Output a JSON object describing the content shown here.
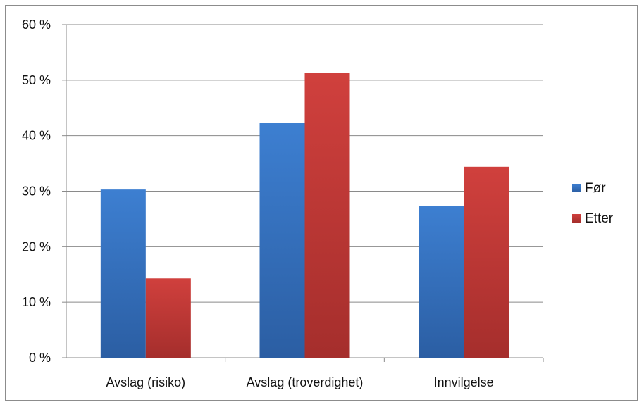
{
  "chart_data": {
    "type": "bar",
    "categories": [
      "Avslag (risiko)",
      "Avslag (troverdighet)",
      "Innvilgelse"
    ],
    "series": [
      {
        "name": "Før",
        "values": [
          30.3,
          42.3,
          27.3
        ],
        "color": "#3a78c9"
      },
      {
        "name": "Etter",
        "values": [
          14.3,
          51.3,
          34.4
        ],
        "color": "#c83c3a"
      }
    ],
    "ylim": [
      0,
      60
    ],
    "y_ticks": [
      0,
      10,
      20,
      30,
      40,
      50,
      60
    ],
    "y_tick_labels": [
      "0 %",
      "10 %",
      "20 %",
      "30 %",
      "40 %",
      "50 %",
      "60 %"
    ],
    "grid": true,
    "legend_position": "right",
    "title": "",
    "xlabel": "",
    "ylabel": ""
  }
}
